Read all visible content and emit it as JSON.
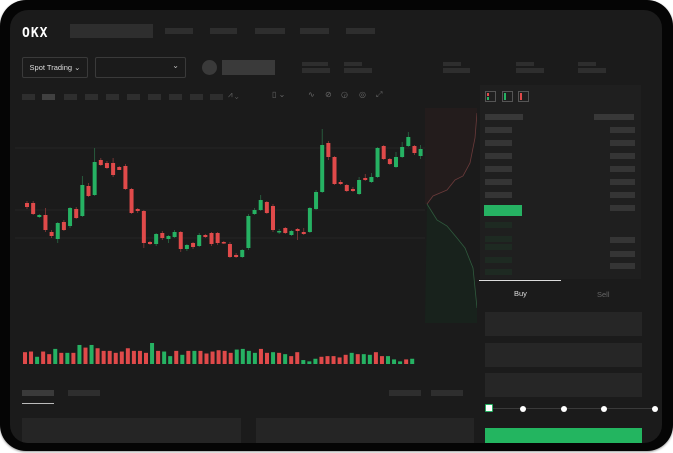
{
  "header": {
    "logo": "OKX"
  },
  "market": {
    "mode_label": "Spot Trading"
  },
  "trade": {
    "tabs": [
      {
        "label": "Buy",
        "active": true
      },
      {
        "label": "Sell",
        "active": false
      }
    ],
    "slider_level": 0,
    "buy_color": "#23b560"
  },
  "colors": {
    "up": "#26b263",
    "down": "#e04a4a",
    "background": "#1b1b1b"
  },
  "chart_data": {
    "type": "candlestick",
    "title": "",
    "xlabel": "",
    "ylabel": "",
    "grid": true,
    "candles_ohlc": [
      [
        97,
        99,
        91,
        93
      ],
      [
        97,
        99,
        85,
        86
      ],
      [
        83,
        86,
        82,
        85
      ],
      [
        85,
        92,
        68,
        70
      ],
      [
        68,
        70,
        62,
        64
      ],
      [
        61,
        78,
        57,
        77
      ],
      [
        78,
        80,
        69,
        70
      ],
      [
        74,
        93,
        72,
        92
      ],
      [
        91,
        93,
        81,
        82
      ],
      [
        84,
        124,
        83,
        115
      ],
      [
        114,
        117,
        103,
        104
      ],
      [
        105,
        152,
        104,
        138
      ],
      [
        140,
        142,
        134,
        135
      ],
      [
        137,
        139,
        131,
        132
      ],
      [
        137,
        142,
        123,
        125
      ],
      [
        133,
        134,
        130,
        130
      ],
      [
        134,
        136,
        110,
        111
      ],
      [
        111,
        112,
        86,
        87
      ],
      [
        91,
        92,
        87,
        89
      ],
      [
        89,
        90,
        52,
        57
      ],
      [
        58,
        59,
        55,
        56
      ],
      [
        56,
        67,
        54,
        66
      ],
      [
        67,
        69,
        60,
        62
      ],
      [
        61,
        65,
        57,
        64
      ],
      [
        63,
        70,
        62,
        68
      ],
      [
        68,
        69,
        48,
        51
      ],
      [
        51,
        56,
        49,
        55
      ],
      [
        57,
        58,
        51,
        53
      ],
      [
        54,
        67,
        53,
        65
      ],
      [
        65,
        66,
        62,
        63
      ],
      [
        67,
        68,
        54,
        56
      ],
      [
        67,
        68,
        55,
        57
      ],
      [
        58,
        59,
        56,
        57
      ],
      [
        56,
        58,
        42,
        43
      ],
      [
        45,
        47,
        42,
        43
      ],
      [
        43,
        51,
        42,
        50
      ],
      [
        52,
        86,
        50,
        84
      ],
      [
        86,
        92,
        85,
        90
      ],
      [
        90,
        105,
        89,
        100
      ],
      [
        98,
        99,
        86,
        87
      ],
      [
        94,
        96,
        68,
        70
      ],
      [
        68,
        71,
        66,
        69
      ],
      [
        72,
        73,
        66,
        67
      ],
      [
        65,
        70,
        64,
        69
      ],
      [
        71,
        72,
        60,
        69
      ],
      [
        68,
        72,
        65,
        66
      ],
      [
        68,
        93,
        67,
        92
      ],
      [
        91,
        110,
        90,
        108
      ],
      [
        108,
        171,
        107,
        155
      ],
      [
        157,
        159,
        140,
        143
      ],
      [
        143,
        144,
        115,
        116
      ],
      [
        118,
        120,
        115,
        116
      ],
      [
        115,
        116,
        108,
        109
      ],
      [
        111,
        113,
        108,
        109
      ],
      [
        106,
        123,
        105,
        120
      ],
      [
        122,
        126,
        119,
        120
      ],
      [
        118,
        127,
        117,
        123
      ],
      [
        123,
        153,
        122,
        152
      ],
      [
        154,
        155,
        140,
        141
      ],
      [
        141,
        142,
        135,
        136
      ],
      [
        133,
        148,
        132,
        143
      ],
      [
        143,
        158,
        142,
        153
      ],
      [
        154,
        168,
        153,
        163
      ],
      [
        154,
        155,
        145,
        147
      ],
      [
        144,
        155,
        141,
        151
      ]
    ],
    "volume": [
      36,
      38,
      22,
      38,
      30,
      46,
      34,
      34,
      34,
      58,
      50,
      58,
      48,
      40,
      40,
      34,
      38,
      48,
      40,
      40,
      34,
      64,
      40,
      38,
      24,
      40,
      28,
      40,
      40,
      40,
      32,
      38,
      42,
      40,
      34,
      44,
      46,
      40,
      34,
      46,
      34,
      36,
      34,
      30,
      24,
      36,
      12,
      8,
      16,
      22,
      24,
      24,
      20,
      28,
      34,
      30,
      30,
      28,
      36,
      24,
      24,
      14,
      8,
      14,
      16
    ]
  }
}
